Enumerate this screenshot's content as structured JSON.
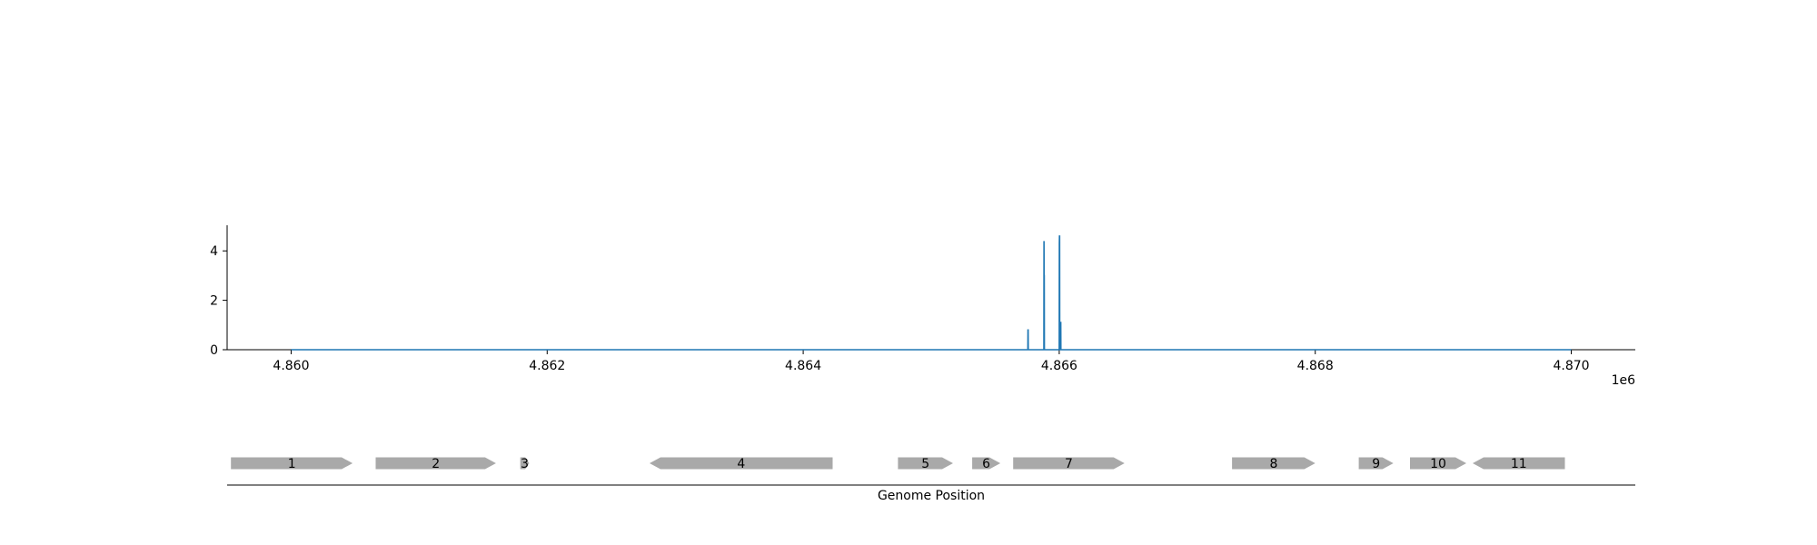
{
  "chart_data": {
    "type": "line",
    "title": "",
    "ylabel": "",
    "offset_label": "1e6",
    "xlim": [
      4859500,
      4870500
    ],
    "ylim": [
      0,
      5
    ],
    "x_ticks": [
      4860000,
      4862000,
      4864000,
      4866000,
      4868000,
      4870000
    ],
    "x_tick_labels": [
      "4.860",
      "4.862",
      "4.864",
      "4.866",
      "4.868",
      "4.870"
    ],
    "y_ticks": [
      0,
      2,
      4
    ],
    "y_tick_labels": [
      "0",
      "2",
      "4"
    ],
    "line_color": "#1f77b4",
    "series": [
      {
        "x": [
          4860000,
          4865755,
          4865756,
          4865757,
          4865758,
          4865880,
          4865881,
          4865882,
          4865883,
          4865884,
          4865885,
          4865886,
          4866000,
          4866001,
          4866002,
          4866003,
          4866004,
          4866010,
          4866011,
          4866012,
          4866013,
          4866014,
          4866015,
          4870000
        ],
        "y": [
          0,
          0,
          0.8,
          0.8,
          0,
          0,
          4.4,
          3.0,
          3.0,
          0,
          0,
          0,
          0,
          4.3,
          4.6,
          4.6,
          0,
          0,
          1.1,
          1.1,
          0,
          0,
          0,
          0
        ]
      }
    ]
  },
  "gene_track": {
    "xlabel": "Genome Position",
    "gene_color": "#a9a9a9",
    "genes": [
      {
        "label": "1",
        "start": 4859530,
        "end": 4860480,
        "strand": "+"
      },
      {
        "label": "2",
        "start": 4860660,
        "end": 4861600,
        "strand": "+"
      },
      {
        "label": "3",
        "start": 4861790,
        "end": 4861860,
        "strand": "+"
      },
      {
        "label": "4",
        "start": 4862800,
        "end": 4864230,
        "strand": "-"
      },
      {
        "label": "5",
        "start": 4864740,
        "end": 4865170,
        "strand": "+"
      },
      {
        "label": "6",
        "start": 4865320,
        "end": 4865540,
        "strand": "+"
      },
      {
        "label": "7",
        "start": 4865640,
        "end": 4866510,
        "strand": "+"
      },
      {
        "label": "8",
        "start": 4867350,
        "end": 4868000,
        "strand": "+"
      },
      {
        "label": "9",
        "start": 4868340,
        "end": 4868610,
        "strand": "+"
      },
      {
        "label": "10",
        "start": 4868740,
        "end": 4869180,
        "strand": "+"
      },
      {
        "label": "11",
        "start": 4869230,
        "end": 4869950,
        "strand": "-"
      }
    ]
  }
}
